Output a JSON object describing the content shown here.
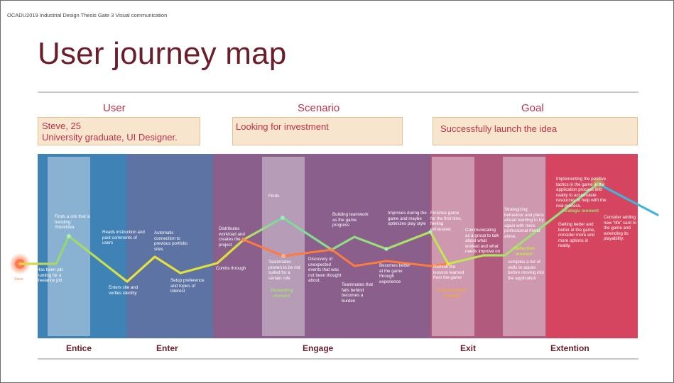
{
  "header": "OCADU2019 Industrial Design Thesis Gate 3 Visual communication",
  "title": "User journey map",
  "columns": {
    "user": {
      "heading": "User",
      "lines": [
        "Steve, 25",
        "University graduate, UI Designer."
      ]
    },
    "scenario": {
      "heading": "Scenario",
      "text": "Looking for investment"
    },
    "goal": {
      "heading": "Goal",
      "text": "Successfully launch the idea"
    }
  },
  "stages": [
    "Entice",
    "Enter",
    "Engage",
    "Exit",
    "Extention"
  ],
  "colors": {
    "title": "#6b1d2a",
    "accent": "#c0304a",
    "entice": "#3f82b6",
    "enter": "#5d73a3",
    "engage": "#8a5f8c",
    "exit": "#b15a7d",
    "extension": "#d6455f",
    "line_positive": "#9fe073",
    "line_neutral": "#e8e23c",
    "line_negative": "#ff7a3d",
    "line_extra": "#3cb6dc"
  },
  "start_label": "Steve",
  "steps": [
    "Has been job hunting for a freelance job",
    "Finds a site that is trending: StockIdea",
    "Reads instruction and past comments of users",
    "Enters site and verfies identity",
    "Automatic connection to previous portfolio sites",
    "Setup preference and topics of interest",
    "Combs through",
    "Distributes workload and creates the project",
    "Finds",
    "Teammates proven to be not suited for a certain role",
    "Discovery of unexpected events that was not been thought about.",
    "Building teamwork as the game progress",
    "Teammates that fails behind becomes a burden",
    "Becomes better at the game through experience",
    "Improves during the game and maybe optimizes play style",
    "Finishes game for the first time, feeling exhausted.",
    "Rethink the lessons learned from the game",
    "Communicating as a group to talk about what worked and what needs improve on",
    "Strategizing behaviour and plans ahead wanting to try again with more professional friend alone.",
    "compiles a list of skills to aquire before moving into the application",
    "Getting better and better at the game, consider more and more options in reality.",
    "Implementing the positive tactics in the game in the application process into reality to accumulate resources to help with the real process.",
    "Consider adding new \"life\" card to the game and extending its playability."
  ],
  "moments": {
    "rewarding": "Rewarding moment",
    "confrontation": "Confrontation moment",
    "reflection": "Reflection moment",
    "strategic": "Strategic moment"
  }
}
